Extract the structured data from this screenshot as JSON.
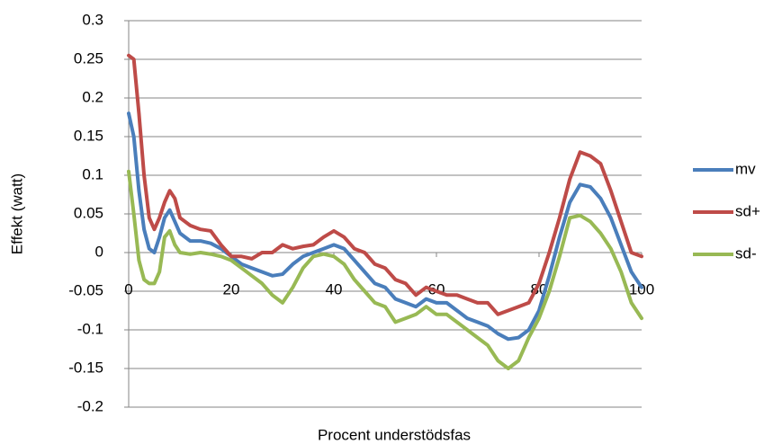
{
  "chart_data": {
    "type": "line",
    "xlabel": "Procent understödsfas",
    "ylabel": "Effekt (watt)",
    "x": [
      0,
      1,
      2,
      3,
      4,
      5,
      6,
      7,
      8,
      9,
      10,
      12,
      14,
      16,
      18,
      20,
      22,
      24,
      26,
      28,
      30,
      32,
      34,
      36,
      38,
      40,
      42,
      44,
      46,
      48,
      50,
      52,
      54,
      56,
      58,
      60,
      62,
      64,
      66,
      68,
      70,
      72,
      74,
      76,
      78,
      80,
      82,
      84,
      86,
      88,
      90,
      92,
      94,
      96,
      98,
      100
    ],
    "series": [
      {
        "name": "mv",
        "color": "#4a7ebb",
        "values": [
          0.18,
          0.15,
          0.08,
          0.03,
          0.005,
          0.0,
          0.02,
          0.045,
          0.055,
          0.04,
          0.025,
          0.015,
          0.015,
          0.012,
          0.005,
          -0.005,
          -0.015,
          -0.02,
          -0.025,
          -0.03,
          -0.028,
          -0.015,
          -0.005,
          0.0,
          0.005,
          0.01,
          0.005,
          -0.01,
          -0.025,
          -0.04,
          -0.045,
          -0.06,
          -0.065,
          -0.07,
          -0.06,
          -0.065,
          -0.065,
          -0.075,
          -0.085,
          -0.09,
          -0.095,
          -0.105,
          -0.112,
          -0.11,
          -0.1,
          -0.075,
          -0.03,
          0.02,
          0.065,
          0.088,
          0.085,
          0.07,
          0.045,
          0.01,
          -0.025,
          -0.045
        ]
      },
      {
        "name": "sd+",
        "color": "#be4b48",
        "values": [
          0.255,
          0.25,
          0.18,
          0.1,
          0.045,
          0.03,
          0.045,
          0.065,
          0.08,
          0.07,
          0.045,
          0.035,
          0.03,
          0.028,
          0.01,
          -0.005,
          -0.005,
          -0.008,
          0.0,
          0.0,
          0.01,
          0.005,
          0.008,
          0.01,
          0.02,
          0.028,
          0.02,
          0.005,
          0.0,
          -0.015,
          -0.02,
          -0.035,
          -0.04,
          -0.055,
          -0.045,
          -0.05,
          -0.055,
          -0.055,
          -0.06,
          -0.065,
          -0.065,
          -0.08,
          -0.075,
          -0.07,
          -0.065,
          -0.04,
          0.0,
          0.045,
          0.095,
          0.13,
          0.125,
          0.115,
          0.08,
          0.04,
          0.0,
          -0.005
        ]
      },
      {
        "name": "sd-",
        "color": "#98b954",
        "values": [
          0.105,
          0.05,
          -0.01,
          -0.035,
          -0.04,
          -0.04,
          -0.025,
          0.02,
          0.028,
          0.01,
          0.0,
          -0.002,
          0.0,
          -0.002,
          -0.005,
          -0.01,
          -0.02,
          -0.03,
          -0.04,
          -0.055,
          -0.065,
          -0.045,
          -0.02,
          -0.005,
          -0.002,
          -0.005,
          -0.015,
          -0.035,
          -0.05,
          -0.065,
          -0.07,
          -0.09,
          -0.085,
          -0.08,
          -0.07,
          -0.08,
          -0.08,
          -0.09,
          -0.1,
          -0.11,
          -0.12,
          -0.14,
          -0.15,
          -0.14,
          -0.11,
          -0.085,
          -0.05,
          -0.005,
          0.045,
          0.048,
          0.04,
          0.025,
          0.005,
          -0.025,
          -0.065,
          -0.085
        ]
      }
    ],
    "xlim": [
      0,
      100
    ],
    "xticks": [
      0,
      20,
      40,
      60,
      80,
      100
    ],
    "ylim": [
      -0.2,
      0.3
    ],
    "yticks": [
      -0.2,
      -0.15,
      -0.1,
      -0.05,
      0,
      0.05,
      0.1,
      0.15,
      0.2,
      0.25,
      0.3
    ],
    "grid": true,
    "legend": "right"
  }
}
